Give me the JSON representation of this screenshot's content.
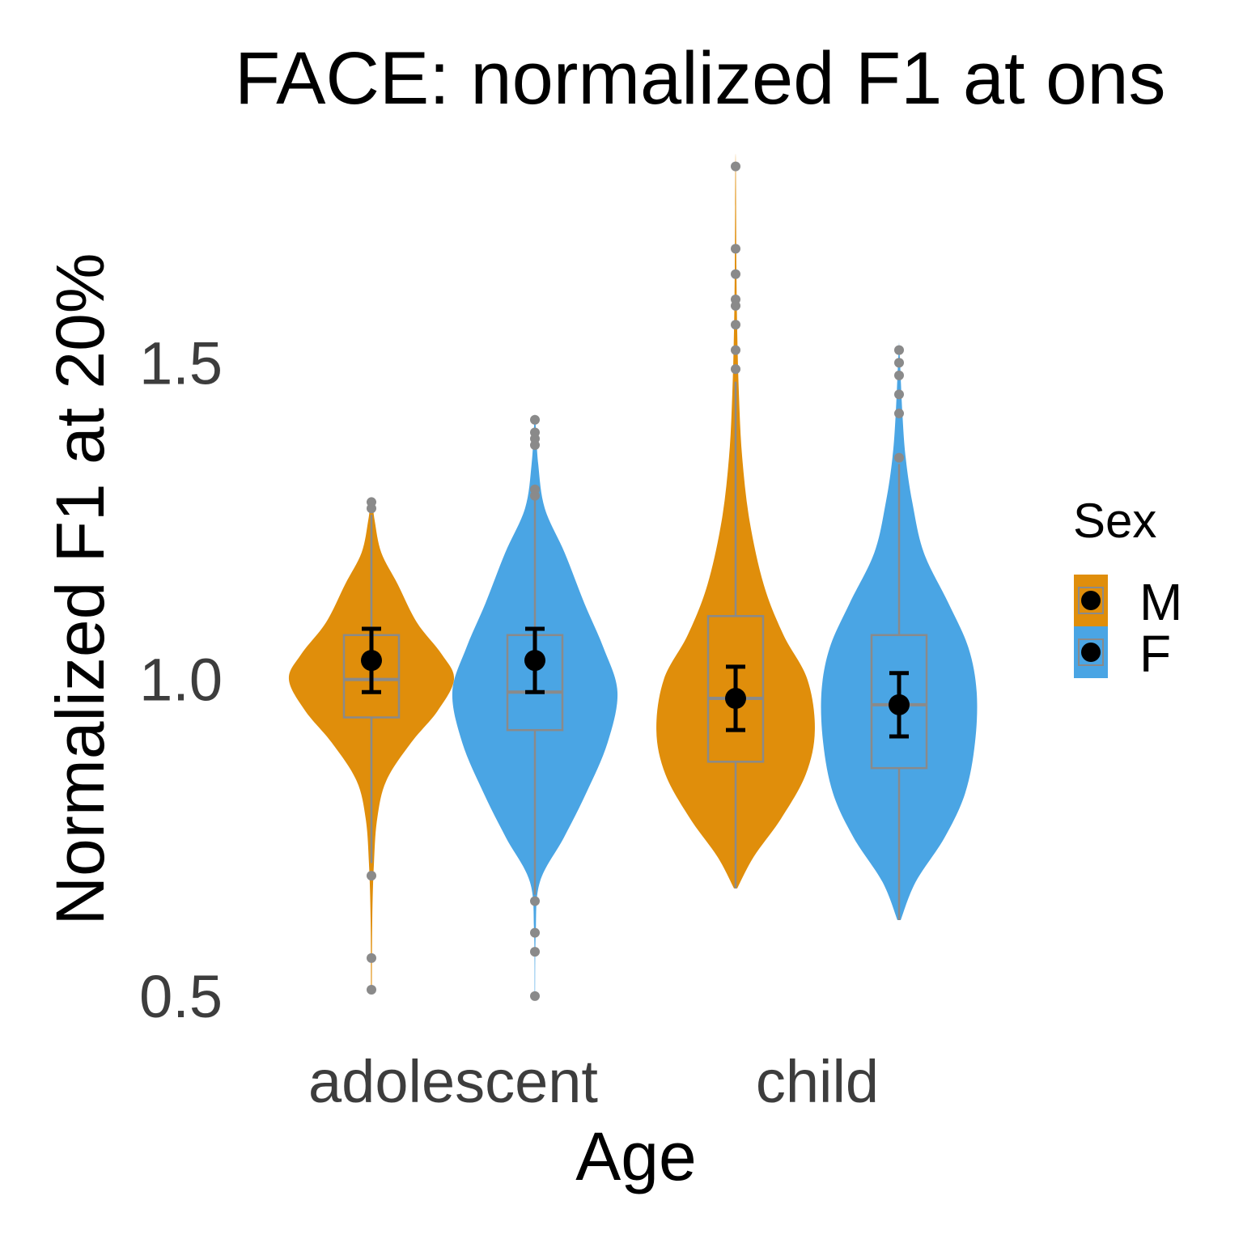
{
  "chart_data": {
    "type": "violin",
    "title": "FACE: normalized F1 at ons",
    "xlabel": "Age",
    "ylabel": "Normalized F1 at 20%",
    "ylim": [
      0.45,
      1.83
    ],
    "yticks": [
      0.5,
      1.0,
      1.5
    ],
    "ytick_labels": [
      "0.5",
      "1.0",
      "1.5"
    ],
    "categories": [
      "adolescent",
      "child"
    ],
    "grid": false,
    "legend": {
      "title": "Sex",
      "placement": "right",
      "entries": [
        {
          "label": "M",
          "color": "#e08e0b"
        },
        {
          "label": "F",
          "color": "#4aa5e4"
        }
      ]
    },
    "colors": {
      "M": "#e08e0b",
      "F": "#4aa5e4",
      "box": "#8a8a8a",
      "mean": "#000000",
      "outlier": "#8a8a8a"
    },
    "series": [
      {
        "name": "M",
        "groups": [
          {
            "category": "adolescent",
            "box": {
              "q1": 0.94,
              "median": 1.0,
              "q3": 1.07
            },
            "mean": 1.03,
            "ci": [
              0.98,
              1.08
            ],
            "whisker": [
              0.71,
              1.26
            ],
            "outliers": [
              0.69,
              0.56,
              0.51,
              1.27,
              1.28
            ],
            "violin_range": [
              0.51,
              1.28
            ],
            "violin_density": [
              [
                0.51,
                0.005
              ],
              [
                0.62,
                0.01
              ],
              [
                0.71,
                0.03
              ],
              [
                0.78,
                0.07
              ],
              [
                0.84,
                0.18
              ],
              [
                0.9,
                0.48
              ],
              [
                0.95,
                0.8
              ],
              [
                1.0,
                1.0
              ],
              [
                1.04,
                0.85
              ],
              [
                1.09,
                0.55
              ],
              [
                1.15,
                0.32
              ],
              [
                1.2,
                0.12
              ],
              [
                1.25,
                0.04
              ],
              [
                1.28,
                0.01
              ]
            ]
          },
          {
            "category": "child",
            "box": {
              "q1": 0.87,
              "median": 0.97,
              "q3": 1.1
            },
            "mean": 0.97,
            "ci": [
              0.92,
              1.02
            ],
            "whisker": [
              0.67,
              1.47
            ],
            "outliers": [
              1.49,
              1.52,
              1.56,
              1.59,
              1.6,
              1.64,
              1.68,
              1.81
            ],
            "violin_range": [
              0.67,
              1.81
            ],
            "violin_density": [
              [
                0.67,
                0.02
              ],
              [
                0.72,
                0.22
              ],
              [
                0.78,
                0.55
              ],
              [
                0.85,
                0.85
              ],
              [
                0.92,
                0.96
              ],
              [
                1.0,
                0.87
              ],
              [
                1.07,
                0.58
              ],
              [
                1.15,
                0.34
              ],
              [
                1.25,
                0.17
              ],
              [
                1.35,
                0.08
              ],
              [
                1.45,
                0.04
              ],
              [
                1.55,
                0.02
              ],
              [
                1.65,
                0.01
              ],
              [
                1.81,
                0.003
              ]
            ]
          }
        ]
      },
      {
        "name": "F",
        "groups": [
          {
            "category": "adolescent",
            "box": {
              "q1": 0.92,
              "median": 0.98,
              "q3": 1.07
            },
            "mean": 1.03,
            "ci": [
              0.98,
              1.08
            ],
            "whisker": [
              0.66,
              1.29
            ],
            "outliers": [
              0.65,
              0.6,
              0.57,
              0.5,
              1.29,
              1.3,
              1.37,
              1.38,
              1.39,
              1.41
            ],
            "violin_range": [
              0.5,
              1.41
            ],
            "violin_density": [
              [
                0.5,
                0.003
              ],
              [
                0.6,
                0.01
              ],
              [
                0.68,
                0.06
              ],
              [
                0.75,
                0.35
              ],
              [
                0.82,
                0.62
              ],
              [
                0.9,
                0.88
              ],
              [
                0.98,
                1.0
              ],
              [
                1.05,
                0.83
              ],
              [
                1.12,
                0.6
              ],
              [
                1.2,
                0.36
              ],
              [
                1.27,
                0.12
              ],
              [
                1.34,
                0.04
              ],
              [
                1.41,
                0.005
              ]
            ]
          },
          {
            "category": "child",
            "box": {
              "q1": 0.86,
              "median": 0.96,
              "q3": 1.07
            },
            "mean": 0.96,
            "ci": [
              0.91,
              1.01
            ],
            "whisker": [
              0.62,
              1.34
            ],
            "outliers": [
              1.35,
              1.42,
              1.45,
              1.48,
              1.5,
              1.52
            ],
            "violin_range": [
              0.62,
              1.52
            ],
            "violin_density": [
              [
                0.62,
                0.02
              ],
              [
                0.68,
                0.2
              ],
              [
                0.75,
                0.55
              ],
              [
                0.82,
                0.8
              ],
              [
                0.9,
                0.92
              ],
              [
                0.98,
                0.94
              ],
              [
                1.05,
                0.84
              ],
              [
                1.12,
                0.6
              ],
              [
                1.2,
                0.3
              ],
              [
                1.28,
                0.16
              ],
              [
                1.35,
                0.08
              ],
              [
                1.42,
                0.04
              ],
              [
                1.52,
                0.005
              ]
            ]
          }
        ]
      }
    ]
  }
}
